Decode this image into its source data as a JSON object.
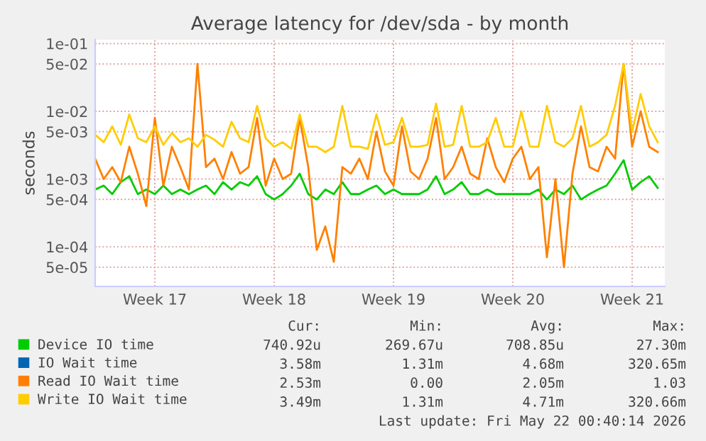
{
  "chart_data": {
    "type": "line",
    "title": "Average latency for /dev/sda - by month",
    "ylabel": "seconds",
    "x": [
      "2026-04-20T00:00",
      "2026-04-20T12:00",
      "2026-04-21T00:00",
      "2026-04-21T12:00",
      "2026-04-22T00:00",
      "2026-04-22T12:00",
      "2026-04-23T00:00",
      "2026-04-23T12:00",
      "2026-04-24T00:00",
      "2026-04-24T12:00",
      "2026-04-25T00:00",
      "2026-04-25T12:00",
      "2026-04-26T00:00",
      "2026-04-26T12:00",
      "2026-04-27T00:00",
      "2026-04-27T12:00",
      "2026-04-28T00:00",
      "2026-04-28T12:00",
      "2026-04-29T00:00",
      "2026-04-29T12:00",
      "2026-04-30T00:00",
      "2026-04-30T12:00",
      "2026-05-01T00:00",
      "2026-05-01T12:00",
      "2026-05-02T00:00",
      "2026-05-02T12:00",
      "2026-05-03T00:00",
      "2026-05-03T12:00",
      "2026-05-04T00:00",
      "2026-05-04T12:00",
      "2026-05-05T00:00",
      "2026-05-05T12:00",
      "2026-05-06T00:00",
      "2026-05-06T12:00",
      "2026-05-07T00:00",
      "2026-05-07T12:00",
      "2026-05-08T00:00",
      "2026-05-08T12:00",
      "2026-05-09T00:00",
      "2026-05-09T12:00",
      "2026-05-10T00:00",
      "2026-05-10T12:00",
      "2026-05-11T00:00",
      "2026-05-11T12:00",
      "2026-05-12T00:00",
      "2026-05-12T12:00",
      "2026-05-13T00:00",
      "2026-05-13T12:00",
      "2026-05-14T00:00",
      "2026-05-14T12:00",
      "2026-05-15T00:00",
      "2026-05-15T12:00",
      "2026-05-16T00:00",
      "2026-05-16T12:00",
      "2026-05-17T00:00",
      "2026-05-17T12:00",
      "2026-05-18T00:00",
      "2026-05-18T12:00",
      "2026-05-19T00:00",
      "2026-05-19T12:00",
      "2026-05-20T00:00",
      "2026-05-20T12:00",
      "2026-05-21T00:00",
      "2026-05-21T12:00",
      "2026-05-22T00:00",
      "2026-05-22T12:00",
      "2026-05-23T00:00"
    ],
    "series": [
      {
        "name": "Device IO time",
        "color": "#00cc00",
        "values": [
          0.0007,
          0.0008,
          0.0006,
          0.0009,
          0.0011,
          0.0006,
          0.0007,
          0.0006,
          0.0008,
          0.0006,
          0.0007,
          0.0006,
          0.0007,
          0.0008,
          0.0006,
          0.0009,
          0.0007,
          0.0009,
          0.0008,
          0.0011,
          0.0006,
          0.0005,
          0.0006,
          0.0008,
          0.0012,
          0.0006,
          0.0005,
          0.0007,
          0.0006,
          0.0009,
          0.0006,
          0.0006,
          0.0007,
          0.0008,
          0.0006,
          0.0007,
          0.0006,
          0.0006,
          0.0006,
          0.0007,
          0.0011,
          0.0006,
          0.0007,
          0.0009,
          0.0006,
          0.0006,
          0.0007,
          0.0006,
          0.0006,
          0.0006,
          0.0006,
          0.0006,
          0.0007,
          0.0005,
          0.0007,
          0.0006,
          0.0008,
          0.0005,
          0.0006,
          0.0007,
          0.0008,
          0.0012,
          0.0019,
          0.0007,
          0.0009,
          0.0011,
          0.00074
        ]
      },
      {
        "name": "IO Wait time",
        "color": "#0066b3",
        "values": [
          null,
          null,
          null,
          null,
          null,
          null,
          null,
          null,
          null,
          null,
          null,
          null,
          null,
          null,
          null,
          null,
          null,
          null,
          null,
          null,
          null,
          null,
          null,
          null,
          null,
          null,
          null,
          null,
          null,
          null,
          null,
          null,
          null,
          null,
          null,
          null,
          null,
          null,
          null,
          null,
          null,
          null,
          null,
          null,
          null,
          null,
          null,
          null,
          null,
          null,
          null,
          null,
          null,
          null,
          null,
          null,
          null,
          null,
          null,
          null,
          null,
          null,
          null,
          null,
          null,
          null,
          null
        ]
      },
      {
        "name": "Read IO Wait time",
        "color": "#ff8000",
        "values": [
          0.002,
          0.001,
          0.0015,
          0.0009,
          0.003,
          0.0012,
          0.0004,
          0.008,
          0.0008,
          0.003,
          0.0015,
          0.0007,
          0.05,
          0.0015,
          0.002,
          0.001,
          0.0025,
          0.0012,
          0.0015,
          0.008,
          0.0008,
          0.002,
          0.001,
          0.0012,
          0.008,
          0.0015,
          9e-05,
          0.0002,
          6e-05,
          0.0015,
          0.0012,
          0.002,
          0.001,
          0.005,
          0.0013,
          0.0008,
          0.006,
          0.0013,
          0.001,
          0.002,
          0.008,
          0.001,
          0.0015,
          0.003,
          0.0012,
          0.001,
          0.004,
          0.0015,
          0.0009,
          0.002,
          0.003,
          0.001,
          0.0015,
          7e-05,
          0.001,
          5e-05,
          0.0012,
          0.006,
          0.0015,
          0.0013,
          0.003,
          0.002,
          0.05,
          0.003,
          0.01,
          0.003,
          0.0025
        ]
      },
      {
        "name": "Write IO Wait time",
        "color": "#ffcc00",
        "values": [
          0.0045,
          0.0035,
          0.006,
          0.0032,
          0.009,
          0.004,
          0.0035,
          0.006,
          0.0032,
          0.0048,
          0.0035,
          0.004,
          0.003,
          0.0045,
          0.0038,
          0.003,
          0.007,
          0.004,
          0.0035,
          0.012,
          0.004,
          0.003,
          0.0035,
          0.0028,
          0.009,
          0.003,
          0.003,
          0.0025,
          0.003,
          0.012,
          0.003,
          0.003,
          0.0028,
          0.009,
          0.0032,
          0.0035,
          0.008,
          0.003,
          0.003,
          0.0032,
          0.013,
          0.003,
          0.0032,
          0.012,
          0.003,
          0.003,
          0.0035,
          0.008,
          0.003,
          0.003,
          0.01,
          0.003,
          0.003,
          0.012,
          0.0035,
          0.003,
          0.004,
          0.012,
          0.003,
          0.0035,
          0.0045,
          0.012,
          0.05,
          0.005,
          0.018,
          0.006,
          0.0035
        ]
      }
    ],
    "xlim": [
      "2026-04-20T00:00",
      "2026-05-23T10:00"
    ],
    "xticks": [
      {
        "value": "2026-04-23T12:00",
        "label": "Week 17"
      },
      {
        "value": "2026-04-30T12:00",
        "label": "Week 18"
      },
      {
        "value": "2026-05-07T12:00",
        "label": "Week 19"
      },
      {
        "value": "2026-05-14T12:00",
        "label": "Week 20"
      },
      {
        "value": "2026-05-21T12:00",
        "label": "Week 21"
      }
    ],
    "log": "y",
    "ylim": [
      2.6e-05,
      0.114
    ],
    "yticks": [
      {
        "value": 5e-05,
        "label": "5e-05"
      },
      {
        "value": 0.0001,
        "label": "1e-04"
      },
      {
        "value": 0.0005,
        "label": "5e-04"
      },
      {
        "value": 0.001,
        "label": "1e-03"
      },
      {
        "value": 0.005,
        "label": "5e-03"
      },
      {
        "value": 0.01,
        "label": "1e-02"
      },
      {
        "value": 0.05,
        "label": "5e-02"
      },
      {
        "value": 0.1,
        "label": "1e-01"
      }
    ],
    "grid": true,
    "legend": "bottom",
    "marker": "none",
    "line_style": "solid",
    "annotations": [
      "Cur:",
      "Min:",
      "Avg:",
      "Max:",
      "740.92u",
      "269.67u",
      "708.85u",
      "27.30m",
      "3.58m",
      "1.31m",
      "4.68m",
      "320.65m",
      "2.53m",
      "0.00",
      "2.05m",
      "1.03",
      "3.49m",
      "1.31m",
      "4.71m",
      "320.66m",
      "Last update: Fri May 22 00:40:14 2026"
    ]
  }
}
